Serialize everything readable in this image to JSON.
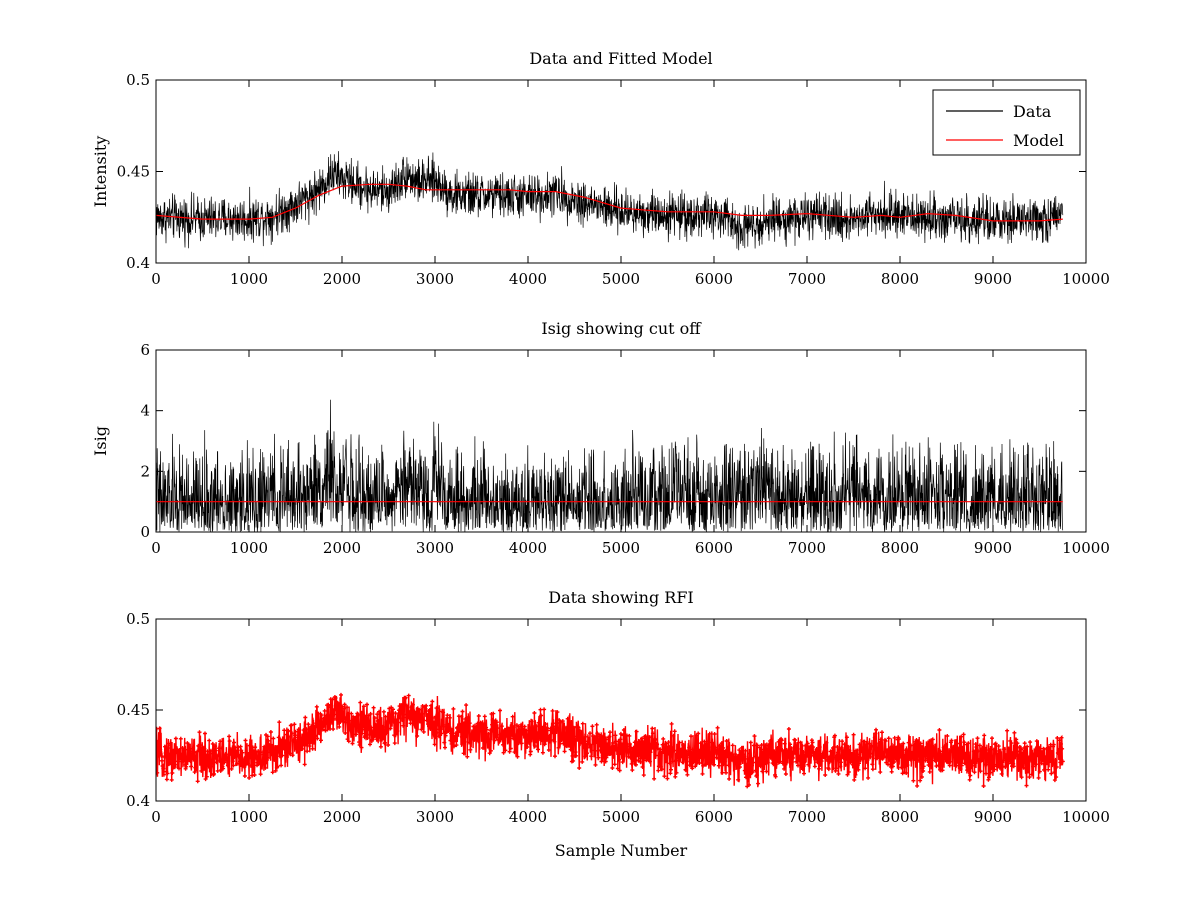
{
  "figure": {
    "background": "#ffffff",
    "series_colors": {
      "Data": "#000000",
      "Model": "#ff0000",
      "Cutoff": "#ff0000",
      "RFI": "#ff0000"
    }
  },
  "chart_data": [
    {
      "type": "line",
      "title": "Data and Fitted Model",
      "xlabel": "",
      "ylabel": "Intensity",
      "xlim": [
        0,
        10000
      ],
      "ylim": [
        0.4,
        0.5
      ],
      "xticks": [
        0,
        1000,
        2000,
        3000,
        4000,
        5000,
        6000,
        7000,
        8000,
        9000,
        10000
      ],
      "yticks": [
        0.4,
        0.45,
        0.5
      ],
      "xtick_labels": [
        "0",
        "1000",
        "2000",
        "3000",
        "4000",
        "5000",
        "6000",
        "7000",
        "8000",
        "9000",
        "10000"
      ],
      "ytick_labels": [
        "0.4",
        "0.45",
        "0.5"
      ],
      "legend": {
        "position": "top-right",
        "entries": [
          "Data",
          "Model"
        ]
      },
      "grid": false,
      "series": [
        {
          "name": "Data",
          "color": "#000000",
          "style": "noisy-line",
          "x": [
            0,
            500,
            1000,
            1250,
            1500,
            1750,
            1900,
            2000,
            2300,
            2500,
            2700,
            2800,
            3000,
            3200,
            3500,
            4000,
            4300,
            4600,
            5000,
            5500,
            6000,
            6300,
            6600,
            7000,
            7500,
            7800,
            8000,
            8500,
            9000,
            9500,
            9750
          ],
          "y": [
            0.425,
            0.424,
            0.424,
            0.426,
            0.432,
            0.44,
            0.449,
            0.446,
            0.44,
            0.439,
            0.449,
            0.444,
            0.445,
            0.437,
            0.437,
            0.436,
            0.438,
            0.433,
            0.428,
            0.427,
            0.426,
            0.42,
            0.424,
            0.425,
            0.424,
            0.429,
            0.425,
            0.425,
            0.422,
            0.424,
            0.425
          ],
          "noise_amplitude": 0.006
        },
        {
          "name": "Model",
          "color": "#ff0000",
          "style": "line",
          "x": [
            0,
            500,
            1000,
            1250,
            1500,
            1750,
            2000,
            2300,
            2500,
            2700,
            2900,
            3100,
            3300,
            3500,
            3800,
            4000,
            4300,
            4600,
            5000,
            5500,
            6000,
            6300,
            6600,
            7000,
            7500,
            7800,
            8000,
            8300,
            8600,
            9000,
            9500,
            9750
          ],
          "y": [
            0.426,
            0.424,
            0.424,
            0.425,
            0.43,
            0.437,
            0.442,
            0.443,
            0.443,
            0.442,
            0.44,
            0.44,
            0.44,
            0.44,
            0.44,
            0.439,
            0.439,
            0.436,
            0.43,
            0.428,
            0.428,
            0.426,
            0.426,
            0.427,
            0.425,
            0.426,
            0.425,
            0.427,
            0.426,
            0.423,
            0.423,
            0.424
          ]
        }
      ]
    },
    {
      "type": "line",
      "title": "Isig showing cut off",
      "xlabel": "",
      "ylabel": "Isig",
      "xlim": [
        0,
        10000
      ],
      "ylim": [
        0,
        6
      ],
      "xticks": [
        0,
        1000,
        2000,
        3000,
        4000,
        5000,
        6000,
        7000,
        8000,
        9000,
        10000
      ],
      "yticks": [
        0,
        2,
        4,
        6
      ],
      "xtick_labels": [
        "0",
        "1000",
        "2000",
        "3000",
        "4000",
        "5000",
        "6000",
        "7000",
        "8000",
        "9000",
        "10000"
      ],
      "ytick_labels": [
        "0",
        "2",
        "4",
        "6"
      ],
      "grid": false,
      "series": [
        {
          "color": "#000000",
          "style": "noisy-nonneg",
          "x": [
            0,
            500,
            1000,
            1500,
            1800,
            1850,
            1900,
            1950,
            2000,
            2050,
            2100,
            2500,
            2700,
            2800,
            2900,
            2950,
            3000,
            3050,
            3100,
            3500,
            4000,
            5000,
            6000,
            6300,
            6600,
            7000,
            7700,
            7800,
            7850,
            7900,
            8500,
            9000,
            9750
          ],
          "y": [
            1.0,
            0.9,
            0.9,
            1.1,
            1.4,
            2.3,
            2.0,
            0.2,
            1.6,
            2.3,
            1.0,
            1.0,
            1.8,
            1.4,
            1.6,
            0.2,
            2.2,
            1.8,
            1.1,
            1.0,
            0.9,
            0.9,
            1.1,
            1.3,
            1.2,
            1.0,
            1.2,
            1.6,
            0.3,
            1.1,
            1.0,
            0.9,
            1.0
          ],
          "noise_amplitude": 0.9
        },
        {
          "color": "#ff0000",
          "style": "line",
          "x": [
            0,
            9750
          ],
          "y": [
            1.0,
            1.0
          ]
        }
      ]
    },
    {
      "type": "line",
      "title": "Data showing RFI",
      "xlabel": "Sample Number",
      "ylabel": "",
      "xlim": [
        0,
        10000
      ],
      "ylim": [
        0.4,
        0.5
      ],
      "xticks": [
        0,
        1000,
        2000,
        3000,
        4000,
        5000,
        6000,
        7000,
        8000,
        9000,
        10000
      ],
      "yticks": [
        0.4,
        0.45,
        0.5
      ],
      "xtick_labels": [
        "0",
        "1000",
        "2000",
        "3000",
        "4000",
        "5000",
        "6000",
        "7000",
        "8000",
        "9000",
        "10000"
      ],
      "ytick_labels": [
        "0.4",
        "0.45",
        "0.5"
      ],
      "grid": false,
      "series": [
        {
          "color": "#ff0000",
          "style": "noisy-line-markers",
          "x": [
            0,
            500,
            1000,
            1250,
            1500,
            1750,
            1900,
            2000,
            2300,
            2500,
            2700,
            2800,
            3000,
            3200,
            3500,
            4000,
            4300,
            4600,
            5000,
            5500,
            6000,
            6300,
            6600,
            7000,
            7500,
            7800,
            8000,
            8500,
            9000,
            9500,
            9750
          ],
          "y": [
            0.425,
            0.424,
            0.424,
            0.426,
            0.432,
            0.44,
            0.449,
            0.446,
            0.44,
            0.439,
            0.449,
            0.444,
            0.445,
            0.437,
            0.437,
            0.436,
            0.438,
            0.433,
            0.428,
            0.427,
            0.426,
            0.42,
            0.424,
            0.425,
            0.424,
            0.429,
            0.425,
            0.425,
            0.422,
            0.424,
            0.425
          ],
          "noise_amplitude": 0.006
        }
      ]
    }
  ]
}
